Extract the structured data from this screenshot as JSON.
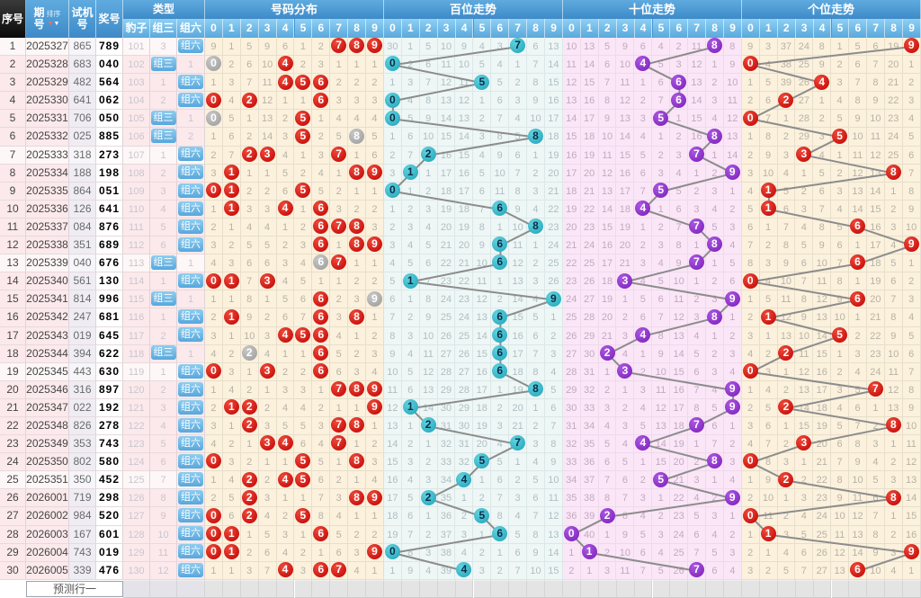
{
  "header": {
    "seq": "序号",
    "period": "期号",
    "sort": "排序",
    "test_line1": "试机",
    "test_line2": "号",
    "period_line1": "期",
    "period_line2": "号",
    "prize": "奖号",
    "type_group": "类型",
    "leopard": "豹子",
    "group3": "组三",
    "group6": "组六",
    "sections": [
      "号码分布",
      "百位走势",
      "十位走势",
      "个位走势"
    ],
    "digits": [
      "0",
      "1",
      "2",
      "3",
      "4",
      "5",
      "6",
      "7",
      "8",
      "9"
    ]
  },
  "footer": {
    "predict_label": "预测行一"
  },
  "colors": {
    "header_blue": "#4796d2",
    "subheader_blue": "#6fbae6",
    "seq_header_black": "#111111",
    "row_pink": "#fce9ec",
    "dist_bg": "#fbf1dd",
    "hundreds_bg": "#eef6f6",
    "tens_bg": "#fbe6f8",
    "units_bg": "#fbf1dd",
    "hit_red": "#d50000",
    "hit_gray": "#a8a8a8",
    "hit_teal": "#2bb3c4",
    "hit_purple": "#8a2ec6",
    "type_chip_blue": "#6fb5e4",
    "trend_line": "#8c8c8c"
  },
  "chart_data": {
    "type": "table",
    "row_count": 30,
    "columns": [
      "序号",
      "期号",
      "试机号",
      "奖号",
      "豹子",
      "组三",
      "组六",
      "号码分布 0-9",
      "百位走势 0-9",
      "十位走势 0-9",
      "个位走势 0-9"
    ],
    "rows": [
      {
        "seq": 1,
        "period": "2025327",
        "test": "865",
        "prize": "789"
      },
      {
        "seq": 2,
        "period": "2025328",
        "test": "683",
        "prize": "040"
      },
      {
        "seq": 3,
        "period": "2025329",
        "test": "482",
        "prize": "564"
      },
      {
        "seq": 4,
        "period": "2025330",
        "test": "641",
        "prize": "062"
      },
      {
        "seq": 5,
        "period": "2025331",
        "test": "706",
        "prize": "050"
      },
      {
        "seq": 6,
        "period": "2025332",
        "test": "025",
        "prize": "885"
      },
      {
        "seq": 7,
        "period": "2025333",
        "test": "318",
        "prize": "273"
      },
      {
        "seq": 8,
        "period": "2025334",
        "test": "188",
        "prize": "198"
      },
      {
        "seq": 9,
        "period": "2025335",
        "test": "864",
        "prize": "051"
      },
      {
        "seq": 10,
        "period": "2025336",
        "test": "126",
        "prize": "641"
      },
      {
        "seq": 11,
        "period": "2025337",
        "test": "084",
        "prize": "876"
      },
      {
        "seq": 12,
        "period": "2025338",
        "test": "351",
        "prize": "689"
      },
      {
        "seq": 13,
        "period": "2025339",
        "test": "040",
        "prize": "676"
      },
      {
        "seq": 14,
        "period": "2025340",
        "test": "561",
        "prize": "130"
      },
      {
        "seq": 15,
        "period": "2025341",
        "test": "814",
        "prize": "996"
      },
      {
        "seq": 16,
        "period": "2025342",
        "test": "247",
        "prize": "681"
      },
      {
        "seq": 17,
        "period": "2025343",
        "test": "019",
        "prize": "645"
      },
      {
        "seq": 18,
        "period": "2025344",
        "test": "394",
        "prize": "622"
      },
      {
        "seq": 19,
        "period": "2025345",
        "test": "443",
        "prize": "630"
      },
      {
        "seq": 20,
        "period": "2025346",
        "test": "316",
        "prize": "897"
      },
      {
        "seq": 21,
        "period": "2025347",
        "test": "022",
        "prize": "192"
      },
      {
        "seq": 22,
        "period": "2025348",
        "test": "826",
        "prize": "278"
      },
      {
        "seq": 23,
        "period": "2025349",
        "test": "353",
        "prize": "743"
      },
      {
        "seq": 24,
        "period": "2025350",
        "test": "802",
        "prize": "580"
      },
      {
        "seq": 25,
        "period": "2025351",
        "test": "350",
        "prize": "452"
      },
      {
        "seq": 26,
        "period": "2026001",
        "test": "719",
        "prize": "298"
      },
      {
        "seq": 27,
        "period": "2026002",
        "test": "984",
        "prize": "520"
      },
      {
        "seq": 28,
        "period": "2026003",
        "test": "167",
        "prize": "601"
      },
      {
        "seq": 29,
        "period": "2026004",
        "test": "743",
        "prize": "019"
      },
      {
        "seq": 30,
        "period": "2026005",
        "test": "339",
        "prize": "476"
      }
    ],
    "miss_seeds_row1": {
      "leopard": 101,
      "group3": 3,
      "dist": [
        9,
        1,
        5,
        9,
        6,
        1,
        2,
        null,
        null,
        null
      ],
      "hundreds": [
        30,
        1,
        5,
        10,
        9,
        4,
        3,
        null,
        6,
        13
      ],
      "tens": [
        10,
        13,
        5,
        9,
        6,
        4,
        2,
        11,
        null,
        8
      ],
      "units": [
        9,
        3,
        37,
        24,
        8,
        1,
        5,
        6,
        19,
        null
      ]
    },
    "legend": {
      "hit_rule": "null seed = digit hit in row 1; red/teal/purple circle = drawn digit, gray circle = repeated digit of a 组三 pair, cells count misses since last hit",
      "group3_rows": [
        2,
        5,
        6,
        13,
        15,
        18
      ]
    }
  }
}
